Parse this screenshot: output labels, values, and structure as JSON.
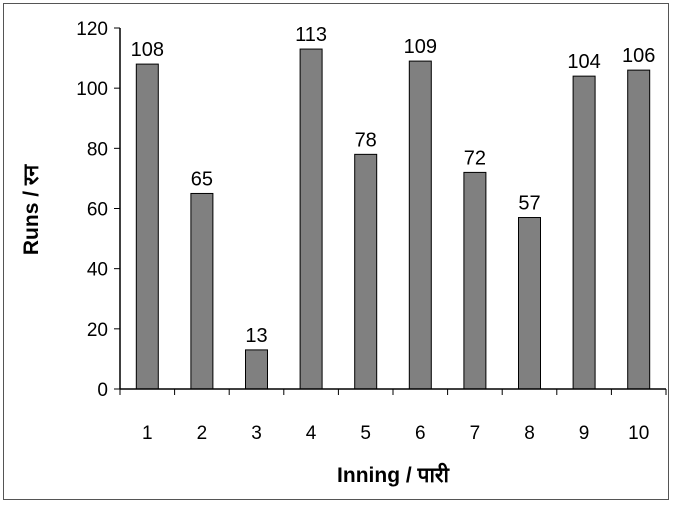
{
  "chart_data": {
    "type": "bar",
    "categories": [
      "1",
      "2",
      "3",
      "4",
      "5",
      "6",
      "7",
      "8",
      "9",
      "10"
    ],
    "values": [
      108,
      65,
      13,
      113,
      78,
      109,
      72,
      57,
      104,
      106
    ],
    "data_labels": [
      "108",
      "65",
      "13",
      "113",
      "78",
      "109",
      "72",
      "57",
      "104",
      "106"
    ],
    "xlabel": "Inning / पारी",
    "ylabel": "Runs / रन",
    "ylim": [
      0,
      120
    ],
    "yticks": [
      "0",
      "20",
      "40",
      "60",
      "80",
      "100",
      "120"
    ],
    "grid": false,
    "bar_color": "#808080",
    "bar_edge_color": "#000000"
  }
}
